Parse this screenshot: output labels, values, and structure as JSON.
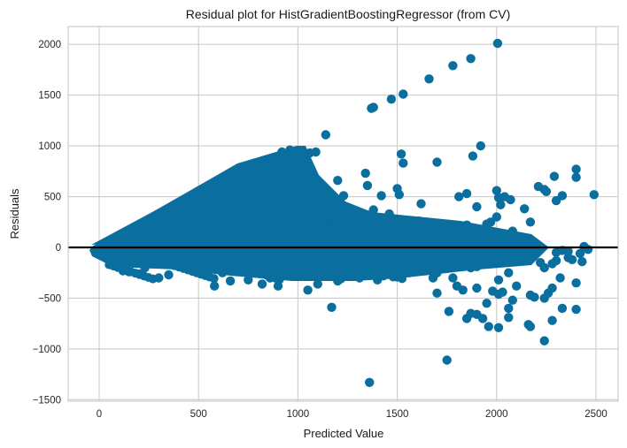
{
  "chart_data": {
    "type": "scatter",
    "title": "Residual plot for HistGradientBoostingRegressor (from CV)",
    "xlabel": "Predicted Value",
    "ylabel": "Residuals",
    "xlim": [
      -155,
      2545
    ],
    "ylim": [
      -1515,
      2190
    ],
    "xticks": [
      0,
      500,
      1000,
      1500,
      2000,
      2500
    ],
    "xtick_labels": [
      "0",
      "500",
      "1000",
      "1500",
      "2000",
      "2500"
    ],
    "yticks": [
      2000,
      1500,
      1000,
      500,
      0,
      -500,
      -1000,
      -1500
    ],
    "ytick_labels": [
      "2000",
      "1500",
      "1000",
      "500",
      "0",
      "−500",
      "−1000",
      "−1500"
    ],
    "grid": true,
    "legend": null,
    "point_color": "#0A6E9E",
    "reference_line": {
      "y": 0,
      "color": "#000000"
    },
    "dense_region_note": "Dense cluster of points from x=-30 to ~1700: upper boundary rises linearly (residual ≈ predicted), lower band roughly -50 to -350",
    "series": [
      {
        "name": "residuals",
        "points": [
          [
            2005,
            2010
          ],
          [
            1870,
            1860
          ],
          [
            1780,
            1790
          ],
          [
            1660,
            1660
          ],
          [
            1530,
            1510
          ],
          [
            1470,
            1460
          ],
          [
            1380,
            1380
          ],
          [
            1370,
            1370
          ],
          [
            1140,
            1110
          ],
          [
            960,
            960
          ],
          [
            920,
            940
          ],
          [
            910,
            900
          ],
          [
            860,
            860
          ],
          [
            820,
            780
          ],
          [
            790,
            800
          ],
          [
            750,
            750
          ],
          [
            700,
            730
          ],
          [
            1090,
            940
          ],
          [
            1060,
            930
          ],
          [
            1200,
            660
          ],
          [
            1340,
            730
          ],
          [
            1350,
            610
          ],
          [
            1420,
            510
          ],
          [
            1520,
            920
          ],
          [
            1530,
            830
          ],
          [
            1500,
            580
          ],
          [
            1510,
            520
          ],
          [
            1230,
            510
          ],
          [
            1700,
            840
          ],
          [
            1620,
            430
          ],
          [
            1880,
            900
          ],
          [
            1920,
            1000
          ],
          [
            1810,
            500
          ],
          [
            1850,
            530
          ],
          [
            1900,
            400
          ],
          [
            2000,
            560
          ],
          [
            2010,
            490
          ],
          [
            2040,
            500
          ],
          [
            2020,
            420
          ],
          [
            2070,
            470
          ],
          [
            2140,
            380
          ],
          [
            2210,
            600
          ],
          [
            2240,
            570
          ],
          [
            2250,
            550
          ],
          [
            2290,
            700
          ],
          [
            2300,
            460
          ],
          [
            2330,
            510
          ],
          [
            2400,
            770
          ],
          [
            2400,
            690
          ],
          [
            2490,
            520
          ],
          [
            1970,
            250
          ],
          [
            1950,
            230
          ],
          [
            2000,
            300
          ],
          [
            2170,
            250
          ],
          [
            1850,
            220
          ],
          [
            2080,
            160
          ],
          [
            2010,
            80
          ],
          [
            2120,
            10
          ],
          [
            2140,
            -20
          ],
          [
            2200,
            -40
          ],
          [
            2300,
            -50
          ],
          [
            2330,
            -30
          ],
          [
            2360,
            -40
          ],
          [
            2420,
            -60
          ],
          [
            2440,
            10
          ],
          [
            2460,
            -20
          ],
          [
            2220,
            -150
          ],
          [
            2240,
            -200
          ],
          [
            2280,
            -160
          ],
          [
            2300,
            -130
          ],
          [
            2320,
            -300
          ],
          [
            2360,
            -100
          ],
          [
            2380,
            -120
          ],
          [
            2430,
            -140
          ],
          [
            1850,
            -170
          ],
          [
            1870,
            -200
          ],
          [
            1900,
            -190
          ],
          [
            1960,
            -120
          ],
          [
            2010,
            -320
          ],
          [
            2060,
            -250
          ],
          [
            2100,
            -380
          ],
          [
            1980,
            -430
          ],
          [
            2010,
            -460
          ],
          [
            2030,
            -440
          ],
          [
            2080,
            -520
          ],
          [
            2170,
            -470
          ],
          [
            2190,
            -490
          ],
          [
            2260,
            -450
          ],
          [
            2280,
            -400
          ],
          [
            2400,
            -350
          ],
          [
            1780,
            -300
          ],
          [
            1800,
            -380
          ],
          [
            1830,
            -420
          ],
          [
            1900,
            -400
          ],
          [
            1700,
            -450
          ],
          [
            1950,
            -550
          ],
          [
            2060,
            -600
          ],
          [
            1760,
            -630
          ],
          [
            1870,
            -650
          ],
          [
            1900,
            -660
          ],
          [
            1850,
            -700
          ],
          [
            1930,
            -700
          ],
          [
            1960,
            -780
          ],
          [
            2010,
            -790
          ],
          [
            2060,
            -690
          ],
          [
            2160,
            -760
          ],
          [
            2170,
            -780
          ],
          [
            2240,
            -920
          ],
          [
            2280,
            -720
          ],
          [
            2330,
            -600
          ],
          [
            2400,
            -610
          ],
          [
            2240,
            -500
          ],
          [
            1750,
            -1110
          ],
          [
            1360,
            -1330
          ],
          [
            1170,
            -590
          ],
          [
            900,
            -380
          ],
          [
            970,
            -280
          ],
          [
            1050,
            -420
          ],
          [
            1100,
            -360
          ],
          [
            1140,
            -280
          ],
          [
            1200,
            -330
          ],
          [
            1310,
            -300
          ],
          [
            1320,
            -250
          ],
          [
            1350,
            -240
          ],
          [
            1380,
            -230
          ],
          [
            1400,
            -320
          ],
          [
            1430,
            -280
          ],
          [
            1480,
            -290
          ],
          [
            1590,
            -200
          ],
          [
            1560,
            -250
          ],
          [
            1680,
            -300
          ],
          [
            1700,
            -250
          ],
          [
            1760,
            -200
          ],
          [
            1140,
            280
          ],
          [
            1130,
            230
          ],
          [
            1200,
            300
          ],
          [
            1290,
            300
          ],
          [
            1330,
            250
          ],
          [
            1350,
            320
          ],
          [
            1380,
            370
          ],
          [
            1400,
            200
          ],
          [
            1500,
            260
          ],
          [
            1520,
            210
          ],
          [
            1560,
            240
          ],
          [
            1610,
            260
          ],
          [
            1640,
            200
          ],
          [
            1670,
            180
          ],
          [
            1460,
            330
          ],
          [
            1460,
            190
          ],
          [
            1060,
            390
          ],
          [
            1080,
            420
          ],
          [
            1000,
            330
          ],
          [
            960,
            280
          ],
          [
            940,
            200
          ],
          [
            870,
            330
          ],
          [
            900,
            250
          ],
          [
            920,
            300
          ],
          [
            800,
            420
          ],
          [
            770,
            380
          ],
          [
            740,
            290
          ],
          [
            710,
            260
          ],
          [
            680,
            280
          ],
          [
            640,
            210
          ],
          [
            560,
            240
          ],
          [
            520,
            160
          ],
          [
            460,
            200
          ],
          [
            700,
            240
          ],
          [
            350,
            -270
          ],
          [
            300,
            -300
          ],
          [
            230,
            -200
          ],
          [
            200,
            -260
          ],
          [
            150,
            -240
          ],
          [
            120,
            -230
          ],
          [
            580,
            -380
          ],
          [
            660,
            -330
          ],
          [
            750,
            -320
          ],
          [
            820,
            -360
          ],
          [
            860,
            -300
          ],
          [
            620,
            -250
          ],
          [
            500,
            -250
          ]
        ]
      }
    ]
  }
}
